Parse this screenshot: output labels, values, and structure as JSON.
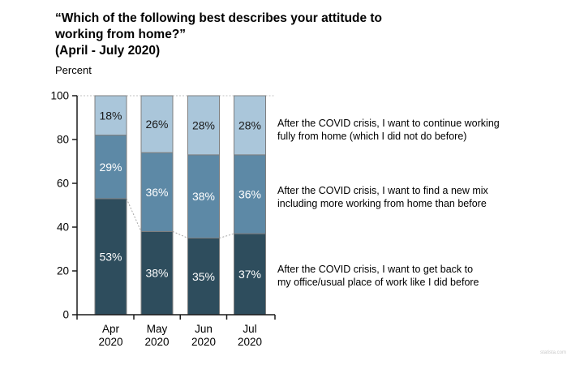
{
  "title": {
    "line1": "“Which of the following best describes your attitude to",
    "line2": "working from home?”",
    "line3": "(April - July 2020)",
    "unit_label": "Percent"
  },
  "chart_data": {
    "type": "bar",
    "stacked": true,
    "title": "“Which of the following best describes your attitude to working from home?” (April - July 2020)",
    "ylabel": "Percent",
    "ylim": [
      0,
      100
    ],
    "yticks": [
      0,
      20,
      40,
      60,
      80,
      100
    ],
    "grid": false,
    "legend_position": "right",
    "value_suffix": "%",
    "categories": [
      "Apr 2020",
      "May 2020",
      "Jun 2020",
      "Jul 2020"
    ],
    "series": [
      {
        "name": "After the COVID crisis, I want to get back to my office/usual place of work like I did before",
        "values": [
          53,
          38,
          35,
          37
        ],
        "color": "#2E4D5D",
        "label_color": "#FFFFFF"
      },
      {
        "name": "After the COVID crisis, I want to find a new mix including more working from home than before",
        "values": [
          29,
          36,
          38,
          36
        ],
        "color": "#5D89A6",
        "label_color": "#FFFFFF"
      },
      {
        "name": "After the COVID crisis, I want to continue working fully from home (which I did not do before)",
        "values": [
          18,
          26,
          28,
          28
        ],
        "color": "#AAC6DA",
        "label_color": "#1A1A1A"
      }
    ],
    "connector_lines": true
  },
  "legend": {
    "items": [
      {
        "lines": [
          "After the COVID crisis, I want to continue working",
          "fully from home (which I did not do before)"
        ]
      },
      {
        "lines": [
          "After the COVID crisis, I want to find a new mix",
          "including more working from home than before"
        ]
      },
      {
        "lines": [
          "After the COVID crisis, I want to get back to",
          "my office/usual place of work like I did before"
        ]
      }
    ]
  },
  "watermark": "statista.com"
}
